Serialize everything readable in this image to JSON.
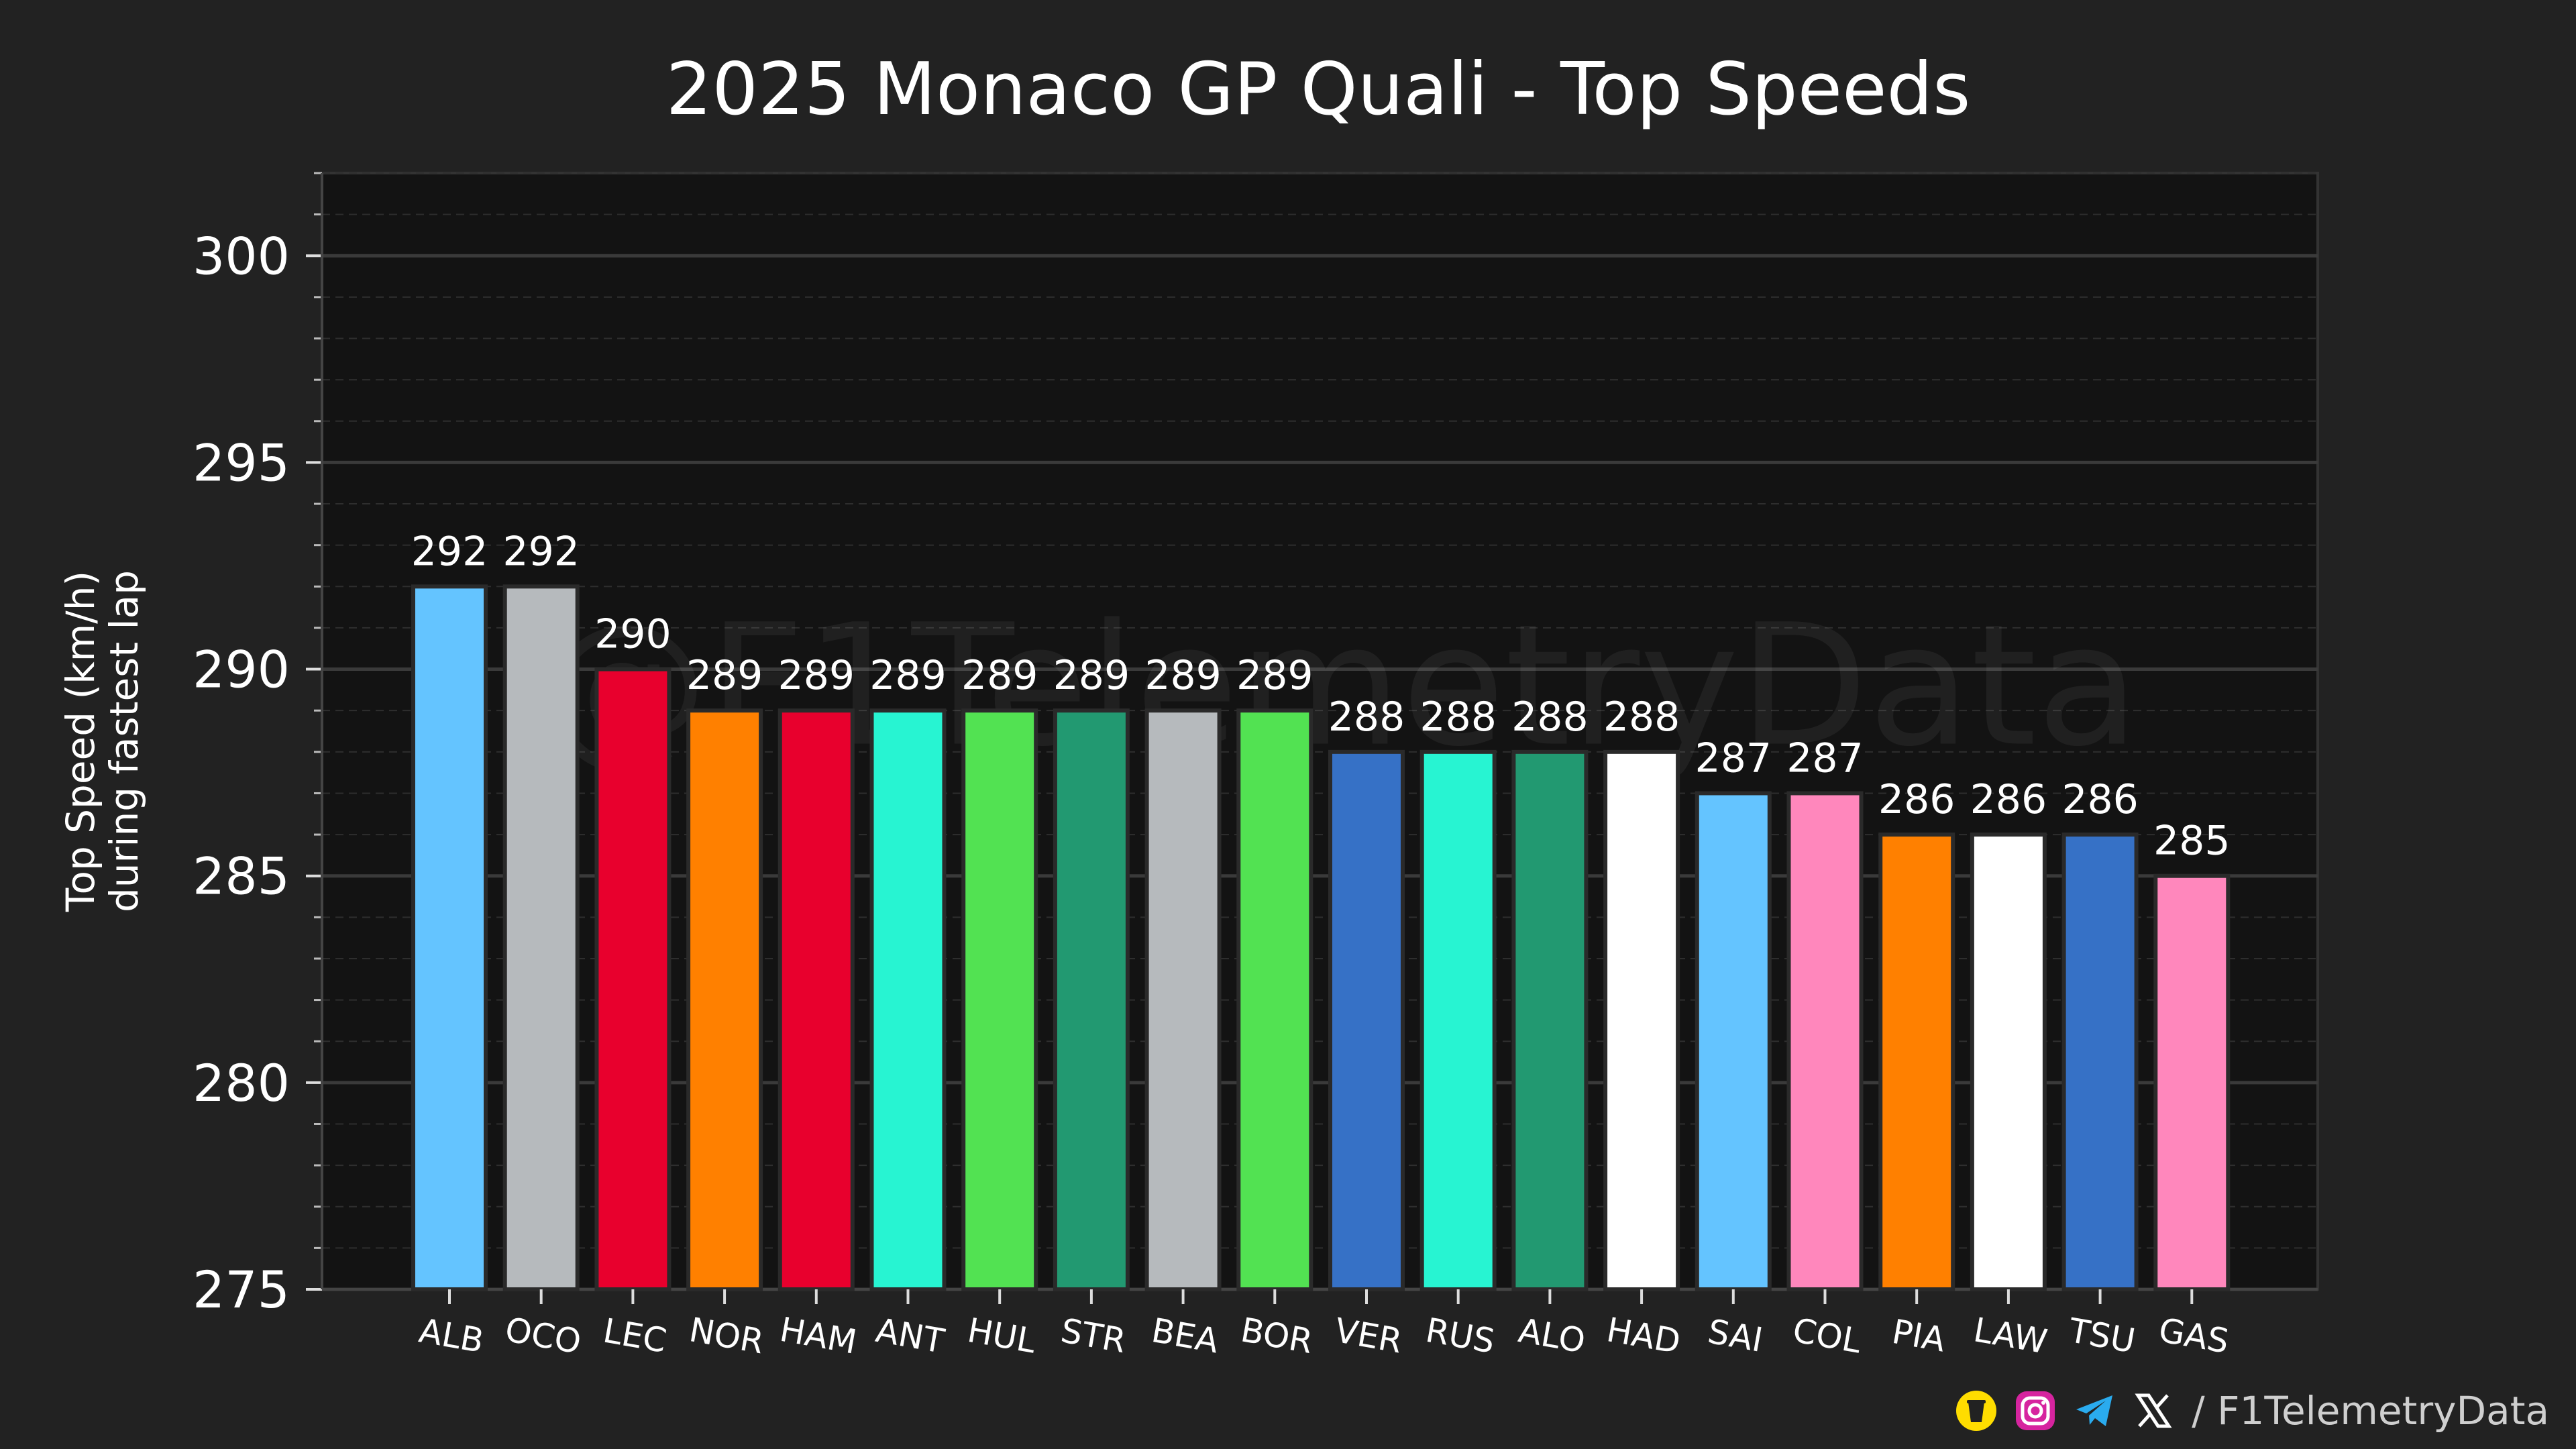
{
  "chart_data": {
    "type": "bar",
    "title": "2025 Monaco GP Quali - Top Speeds",
    "xlabel": "",
    "ylabel_lines": [
      "Top Speed (km/h)",
      "during fastest lap"
    ],
    "ylim": [
      275,
      302
    ],
    "yticks": [
      275,
      280,
      285,
      290,
      295,
      300
    ],
    "grid": true,
    "watermark": "@F1TelemetryData",
    "categories": [
      "ALB",
      "OCO",
      "LEC",
      "NOR",
      "HAM",
      "ANT",
      "HUL",
      "STR",
      "BEA",
      "BOR",
      "VER",
      "RUS",
      "ALO",
      "HAD",
      "SAI",
      "COL",
      "PIA",
      "LAW",
      "TSU",
      "GAS"
    ],
    "values": [
      292,
      292,
      290,
      289,
      289,
      289,
      289,
      289,
      289,
      289,
      288,
      288,
      288,
      288,
      287,
      287,
      286,
      286,
      286,
      285
    ],
    "colors": [
      "#64C4FF",
      "#B6BABD",
      "#E8002D",
      "#FF8000",
      "#E8002D",
      "#27F4D2",
      "#52E252",
      "#229971",
      "#B6BABD",
      "#52E252",
      "#3671C6",
      "#27F4D2",
      "#229971",
      "#FFFFFF",
      "#64C4FF",
      "#FF87BC",
      "#FF8000",
      "#FFFFFF",
      "#3671C6",
      "#FF87BC"
    ]
  },
  "footer": {
    "icons": [
      "coffee-cup-icon",
      "instagram-icon",
      "telegram-icon",
      "x-logo-icon"
    ],
    "handle": "/ F1TelemetryData"
  },
  "theme": {
    "background": "#222222",
    "plot_background": "#131313",
    "grid_major": "#3a3a3a",
    "grid_minor": "#2e2e2e",
    "text": "#ffffff",
    "bar_edge": "#2a2a2a",
    "x_symbol": "#ffffff",
    "telegram_blue": "#2AABEE",
    "coffee_yellow": "#FFDD00"
  }
}
